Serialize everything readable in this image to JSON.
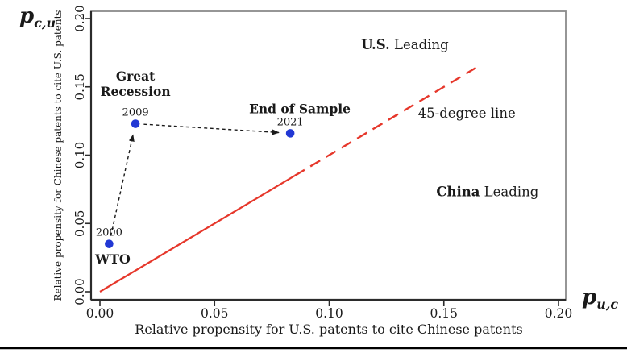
{
  "figure": {
    "background": "#ffffff",
    "bottom_rule_color": "#000000"
  },
  "chart_data": {
    "type": "scatter",
    "title": "",
    "xlabel": "Relative propensity for U.S. patents to cite Chinese patents",
    "ylabel": "Relative propensity for Chinese patents to cite U.S. patents",
    "x_symbol": {
      "base": "p",
      "sub": "u,c"
    },
    "y_symbol": {
      "base": "p",
      "sub": "c,u"
    },
    "xlim": [
      0.0,
      0.2
    ],
    "ylim": [
      0.0,
      0.2
    ],
    "grid": false,
    "legend": "none",
    "xticks": {
      "values": [
        0.0,
        0.05,
        0.1,
        0.15,
        0.2
      ],
      "labels": [
        "0.00",
        "0.05",
        "0.10",
        "0.15",
        "0.20"
      ]
    },
    "yticks": {
      "values": [
        0.0,
        0.05,
        0.1,
        0.15,
        0.2
      ],
      "labels": [
        "0.00",
        "0.05",
        "0.10",
        "0.15",
        "0.20"
      ]
    },
    "points": [
      {
        "year": "2000",
        "x": 0.004,
        "y": 0.035
      },
      {
        "year": "2009",
        "x": 0.0155,
        "y": 0.123
      },
      {
        "year": "2021",
        "x": 0.083,
        "y": 0.116
      }
    ],
    "point_color": "#2238d4",
    "year_label_color": "#3f7d3a",
    "arrow_color": "#1a1a1a",
    "arrows": [
      {
        "from": 0,
        "to": 1
      },
      {
        "from": 1,
        "to": 2
      }
    ],
    "line45": {
      "label": "45-degree line",
      "start": 0.0,
      "solid_to": 0.085,
      "dashed_to": 0.166,
      "color": "#e6372b"
    },
    "annotations": [
      {
        "id": "label-great-recession",
        "x": 0.0155,
        "y": 0.152,
        "size": 15.5,
        "lines": [
          [
            {
              "t": "Great",
              "b": true
            }
          ],
          [
            {
              "t": "Recession",
              "b": true
            }
          ]
        ]
      },
      {
        "id": "label-end-of-sample",
        "x": 0.0872,
        "y": 0.1335,
        "size": 15.5,
        "lines": [
          [
            {
              "t": "End of Sample",
              "b": true
            }
          ]
        ]
      },
      {
        "id": "label-wto",
        "x": 0.0056,
        "y": 0.0235,
        "size": 16,
        "lines": [
          [
            {
              "t": "WTO",
              "b": true
            }
          ]
        ]
      },
      {
        "id": "label-us-leading",
        "x": 0.133,
        "y": 0.1805,
        "size": 16.5,
        "lines": [
          [
            {
              "t": "U.S.",
              "b": true
            },
            {
              "t": " Leading",
              "b": false
            }
          ]
        ]
      },
      {
        "id": "label-china-leading",
        "x": 0.169,
        "y": 0.073,
        "size": 16.5,
        "lines": [
          [
            {
              "t": "China",
              "b": true
            },
            {
              "t": " Leading",
              "b": false
            }
          ]
        ]
      },
      {
        "id": "label-45-degree-line",
        "x": 0.16,
        "y": 0.1305,
        "size": 16.5,
        "lines": [
          [
            {
              "t": "45-degree line",
              "b": false
            }
          ]
        ]
      }
    ]
  }
}
